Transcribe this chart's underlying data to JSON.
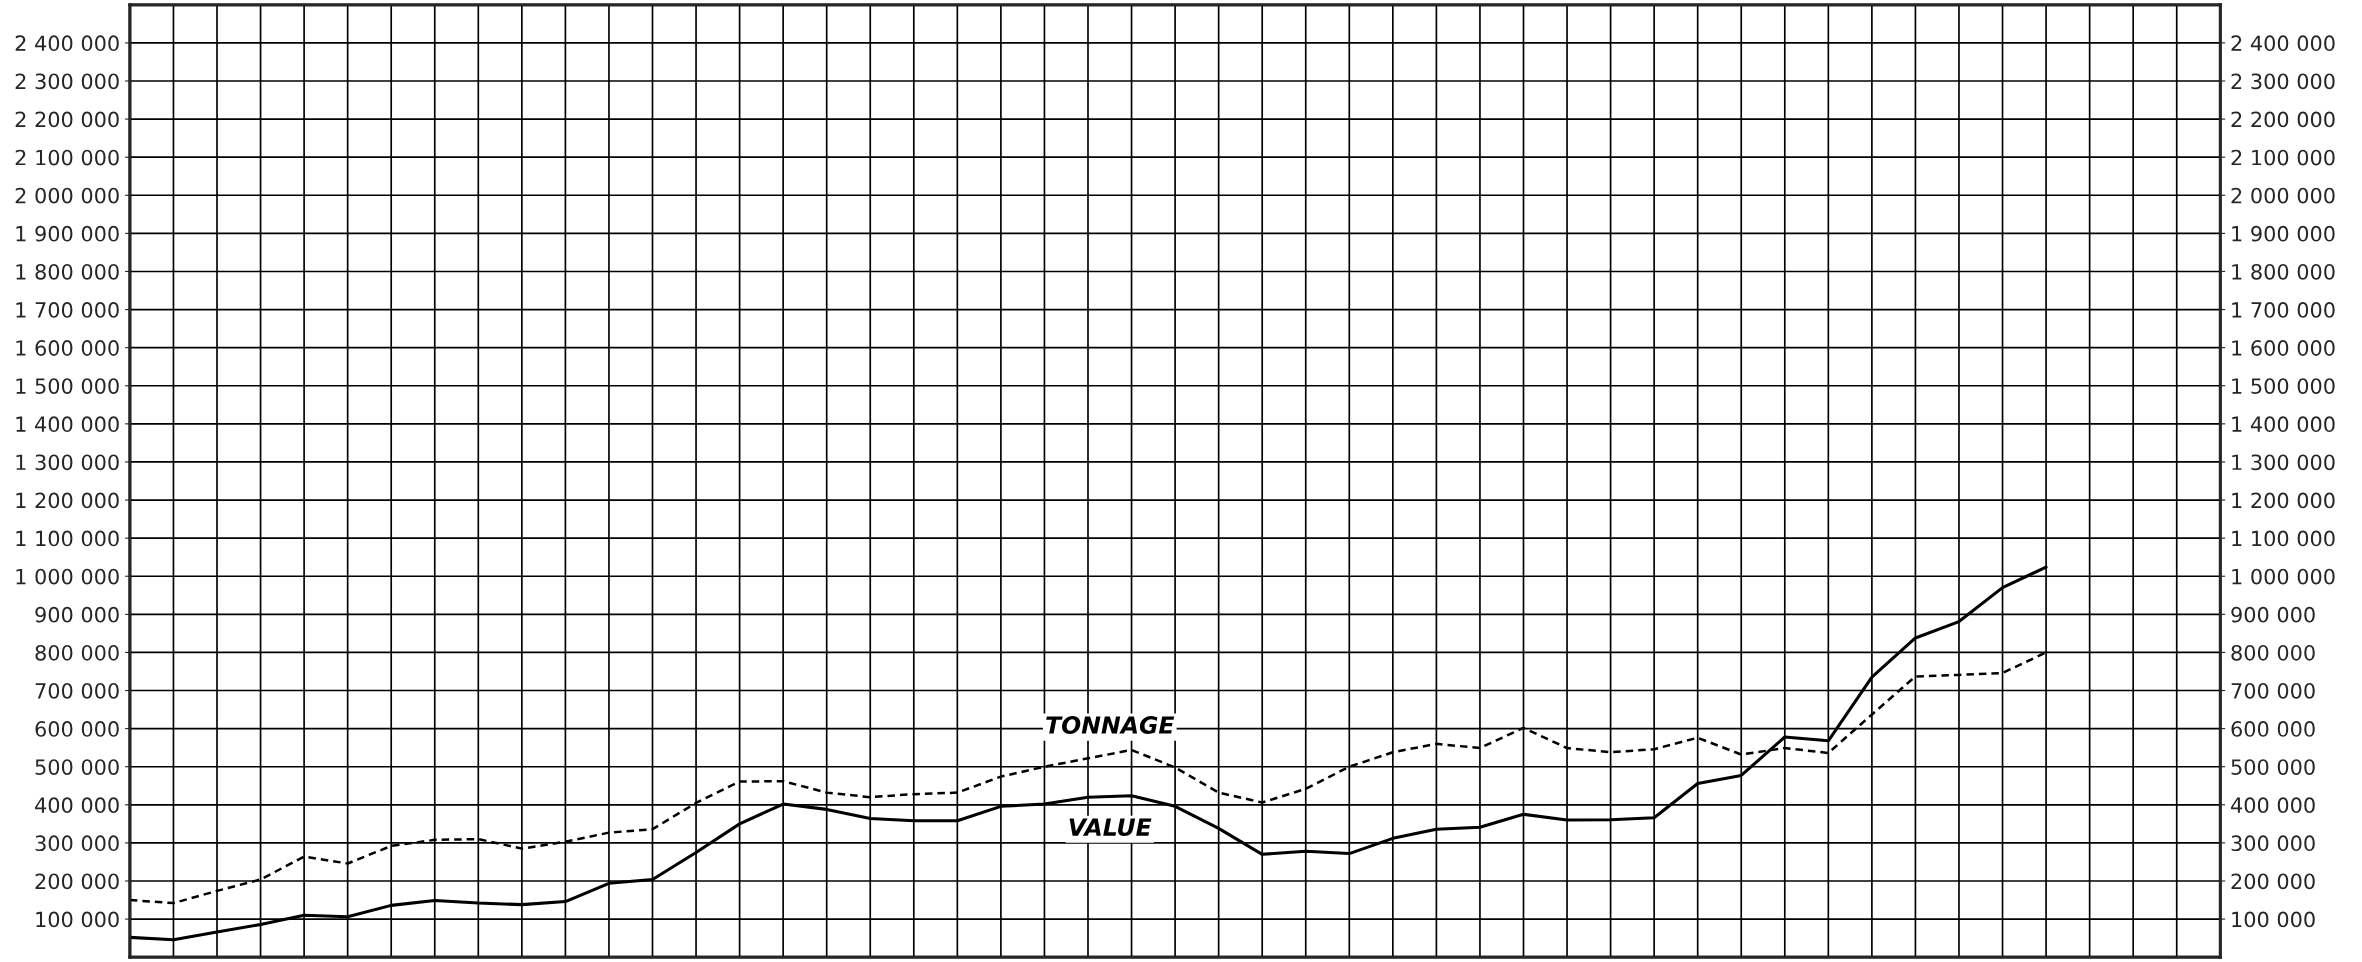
{
  "chart_data": {
    "type": "line",
    "categories": [
      null,
      null,
      null,
      null,
      null,
      null,
      null,
      null,
      null,
      null,
      null,
      null,
      null,
      null,
      null,
      null,
      null,
      null,
      null,
      null,
      null,
      null,
      null,
      null,
      null,
      null,
      null,
      null,
      null,
      null,
      null,
      null,
      null,
      null,
      null,
      null,
      null,
      null,
      null,
      null,
      null,
      null,
      null,
      null,
      null,
      null,
      null,
      null,
      null
    ],
    "series": [
      {
        "name": "TONNAGE",
        "color": "#000000",
        "line_style": "dashed",
        "values": [
          150000,
          142000,
          174000,
          204000,
          264000,
          246000,
          292000,
          308000,
          310000,
          285000,
          303000,
          327000,
          336000,
          405000,
          461000,
          462000,
          432000,
          420000,
          428000,
          432000,
          474000,
          500000,
          522000,
          544000,
          498000,
          432000,
          406000,
          442000,
          500000,
          538000,
          560000,
          549000,
          602000,
          549000,
          538000,
          546000,
          576000,
          532000,
          549000,
          536000,
          637000,
          737000,
          741000,
          746000,
          800000,
          null,
          null,
          null,
          null
        ]
      },
      {
        "name": "VALUE",
        "color": "#000000",
        "line_style": "solid",
        "values": [
          52000,
          46000,
          66000,
          86000,
          110000,
          106000,
          136000,
          149000,
          142000,
          138000,
          146000,
          194000,
          204000,
          275000,
          350000,
          402000,
          388000,
          364000,
          358000,
          358000,
          396000,
          402000,
          420000,
          424000,
          396000,
          338000,
          270000,
          278000,
          272000,
          312000,
          336000,
          341000,
          375000,
          360000,
          361000,
          366000,
          456000,
          477000,
          578000,
          568000,
          735000,
          838000,
          881000,
          970000,
          1024000,
          null,
          null,
          null,
          null
        ]
      }
    ],
    "ylim": [
      0,
      2500000
    ],
    "yticks": [
      {
        "value": 100000,
        "label": "100 000"
      },
      {
        "value": 200000,
        "label": "200 000"
      },
      {
        "value": 300000,
        "label": "300 000"
      },
      {
        "value": 400000,
        "label": "400 000"
      },
      {
        "value": 500000,
        "label": "500 000"
      },
      {
        "value": 600000,
        "label": "600 000"
      },
      {
        "value": 700000,
        "label": "700 000"
      },
      {
        "value": 800000,
        "label": "800 000"
      },
      {
        "value": 900000,
        "label": "900 000"
      },
      {
        "value": 1000000,
        "label": "1 000 000"
      },
      {
        "value": 1100000,
        "label": "1 100 000"
      },
      {
        "value": 1200000,
        "label": "1 200 000"
      },
      {
        "value": 1300000,
        "label": "1 300 000"
      },
      {
        "value": 1400000,
        "label": "1 400 000"
      },
      {
        "value": 1500000,
        "label": "1 500 000"
      },
      {
        "value": 1600000,
        "label": "1 600 000"
      },
      {
        "value": 1700000,
        "label": "1 700 000"
      },
      {
        "value": 1800000,
        "label": "1 800 000"
      },
      {
        "value": 1900000,
        "label": "1 900 000"
      },
      {
        "value": 2000000,
        "label": "2 000 000"
      },
      {
        "value": 2100000,
        "label": "2 100 000"
      },
      {
        "value": 2200000,
        "label": "2 200 000"
      },
      {
        "value": 2300000,
        "label": "2 300 000"
      },
      {
        "value": 2400000,
        "label": "2 400 000"
      }
    ],
    "y2lim": [
      0,
      2500000
    ],
    "y2ticks": [
      {
        "value": 100000,
        "label": "100 000"
      },
      {
        "value": 200000,
        "label": "200 000"
      },
      {
        "value": 300000,
        "label": "300 000"
      },
      {
        "value": 400000,
        "label": "400 000"
      },
      {
        "value": 500000,
        "label": "500 000"
      },
      {
        "value": 600000,
        "label": "600 000"
      },
      {
        "value": 700000,
        "label": "700 000"
      },
      {
        "value": 800000,
        "label": "800 000"
      },
      {
        "value": 900000,
        "label": "900 000"
      },
      {
        "value": 1000000,
        "label": "1 000 000"
      },
      {
        "value": 1100000,
        "label": "1 100 000"
      },
      {
        "value": 1200000,
        "label": "1 200 000"
      },
      {
        "value": 1300000,
        "label": "1 300 000"
      },
      {
        "value": 1400000,
        "label": "1 400 000"
      },
      {
        "value": 1500000,
        "label": "1 500 000"
      },
      {
        "value": 1600000,
        "label": "1 600 000"
      },
      {
        "value": 1700000,
        "label": "1 700 000"
      },
      {
        "value": 1800000,
        "label": "1 800 000"
      },
      {
        "value": 1900000,
        "label": "1 900 000"
      },
      {
        "value": 2000000,
        "label": "2 000 000"
      },
      {
        "value": 2100000,
        "label": "2 100 000"
      },
      {
        "value": 2200000,
        "label": "2 200 000"
      },
      {
        "value": 2300000,
        "label": "2 300 000"
      },
      {
        "value": 2400000,
        "label": "2 400 000"
      }
    ],
    "tick_labels": "y",
    "grid": true,
    "legend": false,
    "marker": "none"
  }
}
